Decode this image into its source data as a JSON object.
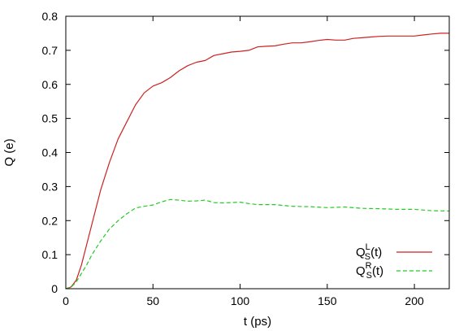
{
  "chart_data": {
    "type": "line",
    "xlabel": "t (ps)",
    "ylabel": "Q (e)",
    "xlim": [
      0,
      220
    ],
    "ylim": [
      0,
      0.8
    ],
    "xticks": [
      "0",
      "50",
      "100",
      "150",
      "200"
    ],
    "xtick_values": [
      0,
      50,
      100,
      150,
      200
    ],
    "yticks": [
      "0",
      "0.1",
      "0.2",
      "0.3",
      "0.4",
      "0.5",
      "0.6",
      "0.7",
      "0.8"
    ],
    "ytick_values": [
      0,
      0.1,
      0.2,
      0.3,
      0.4,
      0.5,
      0.6,
      0.7,
      0.8
    ],
    "grid": false,
    "legend_position": "bottom-right",
    "series": [
      {
        "name": "Q",
        "sup": "L",
        "sub": "S",
        "suffix": "(t)",
        "color": "#cc2222",
        "dash": "solid",
        "x": [
          0,
          3,
          6,
          9,
          12,
          15,
          20,
          25,
          30,
          35,
          40,
          45,
          50,
          55,
          60,
          65,
          70,
          75,
          80,
          85,
          90,
          95,
          100,
          105,
          110,
          115,
          120,
          125,
          130,
          135,
          140,
          145,
          150,
          155,
          160,
          165,
          170,
          175,
          180,
          185,
          190,
          195,
          200,
          205,
          210,
          215,
          220
        ],
        "y": [
          0,
          0.005,
          0.025,
          0.07,
          0.13,
          0.19,
          0.29,
          0.37,
          0.44,
          0.49,
          0.54,
          0.575,
          0.595,
          0.605,
          0.62,
          0.64,
          0.655,
          0.665,
          0.67,
          0.685,
          0.69,
          0.695,
          0.697,
          0.7,
          0.71,
          0.712,
          0.713,
          0.718,
          0.722,
          0.722,
          0.725,
          0.729,
          0.732,
          0.73,
          0.73,
          0.735,
          0.737,
          0.739,
          0.741,
          0.742,
          0.742,
          0.742,
          0.742,
          0.745,
          0.748,
          0.75,
          0.75
        ]
      },
      {
        "name": "Q",
        "sup": "R",
        "sub": "S",
        "suffix": "(t)",
        "color": "#22cc22",
        "dash": "dashed",
        "x": [
          0,
          3,
          6,
          9,
          12,
          15,
          20,
          25,
          30,
          35,
          40,
          45,
          50,
          55,
          60,
          65,
          70,
          75,
          80,
          85,
          90,
          95,
          100,
          105,
          110,
          120,
          130,
          140,
          150,
          160,
          170,
          180,
          190,
          200,
          210,
          220
        ],
        "y": [
          0,
          0.004,
          0.02,
          0.045,
          0.07,
          0.1,
          0.14,
          0.175,
          0.2,
          0.22,
          0.237,
          0.242,
          0.246,
          0.255,
          0.262,
          0.26,
          0.257,
          0.258,
          0.26,
          0.253,
          0.252,
          0.253,
          0.254,
          0.25,
          0.247,
          0.247,
          0.242,
          0.241,
          0.238,
          0.24,
          0.236,
          0.235,
          0.233,
          0.233,
          0.229,
          0.228
        ]
      }
    ]
  }
}
